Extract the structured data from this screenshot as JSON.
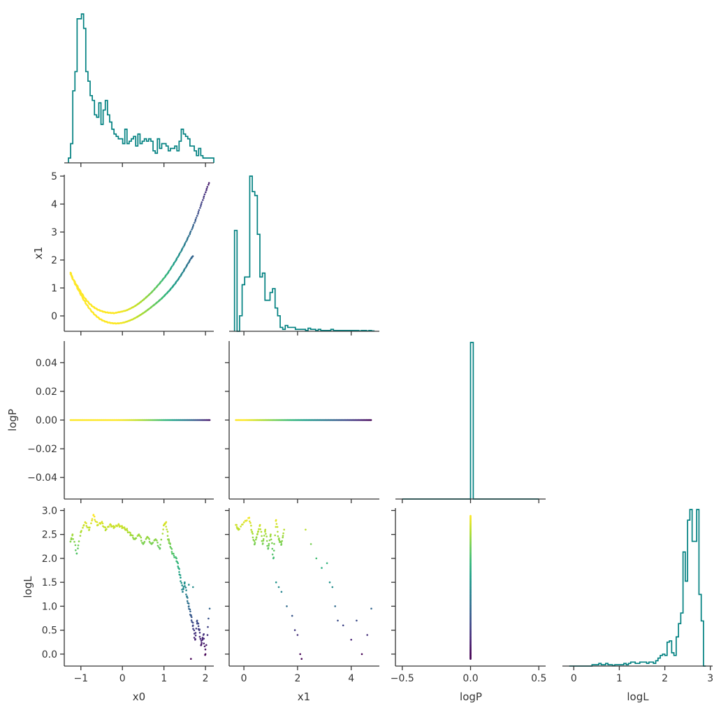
{
  "chart_data": {
    "type": "corner",
    "title": "",
    "variables": [
      "x0",
      "x1",
      "logP",
      "logL"
    ],
    "hist_color": "#008080",
    "colormap": "viridis",
    "color_by": "logL",
    "ranges": {
      "x0": [
        -1.4,
        2.2
      ],
      "x1": [
        -0.55,
        5.05
      ],
      "logP": [
        -0.055,
        0.055
      ],
      "logP_diag": [
        -0.55,
        0.55
      ],
      "logL": [
        -0.25,
        3.05
      ],
      "logL_diag": [
        -0.25,
        3.05
      ]
    },
    "ticks": {
      "x0": [
        -1,
        0,
        1,
        2
      ],
      "x1_y": [
        0,
        1,
        2,
        3,
        4,
        5
      ],
      "x1_x": [
        0,
        2,
        4
      ],
      "logP_y": [
        -0.04,
        -0.02,
        0.0,
        0.02,
        0.04
      ],
      "logP_x": [
        -0.5,
        0.0,
        0.5
      ],
      "logL_y": [
        0.0,
        0.5,
        1.0,
        1.5,
        2.0,
        2.5,
        3.0
      ],
      "logL_x": [
        0,
        1,
        2,
        3
      ]
    },
    "tick_labels": {
      "x0": [
        "−1",
        "0",
        "1",
        "2"
      ],
      "x1_y": [
        "0",
        "1",
        "2",
        "3",
        "4",
        "5"
      ],
      "x1_x": [
        "0",
        "2",
        "4"
      ],
      "logP_y": [
        "−0.04",
        "−0.02",
        "0.00",
        "0.02",
        "0.04"
      ],
      "logP_x": [
        "−0.5",
        "0.0",
        "0.5"
      ],
      "logL_y": [
        "0.0",
        "0.5",
        "1.0",
        "1.5",
        "2.0",
        "2.5",
        "3.0"
      ],
      "logL_x": [
        "0",
        "1",
        "2",
        "3"
      ]
    },
    "axis_labels": {
      "row_x1": "x1",
      "row_logP": "logP",
      "row_logL": "logL",
      "col_x0": "x0",
      "col_x1": "x1",
      "col_logP": "logP",
      "col_logL": "logL"
    },
    "histograms": {
      "x0": {
        "edges": [
          -1.3,
          2.2
        ],
        "counts": [
          2,
          8,
          30,
          38,
          60,
          60,
          62,
          56,
          38,
          34,
          28,
          26,
          20,
          19,
          25,
          16,
          22,
          26,
          20,
          17,
          14,
          12,
          11,
          10,
          10,
          8,
          14,
          8,
          9,
          10,
          11,
          7,
          12,
          8,
          9,
          10,
          9,
          10,
          9,
          5,
          4,
          10,
          6,
          8,
          8,
          7,
          5,
          6,
          6,
          7,
          5,
          9,
          14,
          12,
          11,
          10,
          7,
          7,
          5,
          3,
          6,
          3,
          2,
          2,
          2,
          2,
          2
        ]
      },
      "x1": {
        "edges": [
          -0.35,
          4.85
        ],
        "counts": [
          26,
          0,
          4,
          12,
          14,
          14,
          40,
          36,
          35,
          25,
          14,
          15,
          8,
          8,
          10,
          11,
          6,
          4,
          1,
          0.5,
          1.5,
          1,
          1,
          1,
          0.5,
          0.5,
          0.5,
          0.5,
          0.2,
          0.8,
          0.5,
          0.5,
          0.2,
          0.5,
          0.2,
          0.2,
          0.2,
          0.2,
          0.5,
          0.2,
          0.2,
          0.2,
          0.2,
          0.2,
          0.2,
          0.2,
          0.2,
          0.2,
          0.2,
          0.1,
          0.2,
          0.2,
          0.1,
          0.2,
          0.1
        ]
      },
      "logP": {
        "edges": [
          -0.5,
          0.5
        ],
        "counts": [
          0,
          0,
          0,
          0,
          0,
          0,
          0,
          0,
          0,
          0,
          0,
          0,
          0,
          0,
          0,
          0,
          0,
          0,
          0,
          0,
          0,
          0,
          0,
          0,
          0,
          1,
          0,
          0,
          0,
          0,
          0,
          0,
          0,
          0,
          0,
          0,
          0,
          0,
          0,
          0,
          0,
          0,
          0,
          0,
          0,
          0,
          0,
          0,
          0,
          0
        ]
      },
      "logL": {
        "edges": [
          -0.1,
          2.9
        ],
        "counts": [
          0,
          0,
          0,
          0,
          0,
          0,
          0,
          0,
          0,
          0,
          0.5,
          0.5,
          0.5,
          1,
          0.5,
          0.5,
          1,
          0.5,
          0.5,
          0.2,
          0.5,
          0.5,
          0.5,
          0.5,
          1,
          0.5,
          1,
          1.5,
          1.5,
          1,
          1,
          1.5,
          1.5,
          1.5,
          1,
          1.5,
          1.5,
          1,
          2,
          3,
          4,
          4.5,
          4,
          9,
          9.5,
          5,
          4,
          11,
          16,
          20,
          43,
          32,
          55,
          59,
          47,
          47,
          59,
          27,
          17,
          0
        ]
      }
    },
    "scatter": {
      "note_units": "x0, x1, logL in data units",
      "branchA": [
        [
          -1.25,
          1.55
        ],
        [
          -1.2,
          1.35
        ],
        [
          -1.1,
          1.1
        ],
        [
          -1.0,
          0.85
        ],
        [
          -0.9,
          0.62
        ],
        [
          -0.8,
          0.45
        ],
        [
          -0.7,
          0.32
        ],
        [
          -0.6,
          0.23
        ],
        [
          -0.5,
          0.17
        ],
        [
          -0.4,
          0.13
        ],
        [
          -0.3,
          0.11
        ],
        [
          -0.2,
          0.1
        ],
        [
          -0.1,
          0.13
        ],
        [
          0.0,
          0.16
        ],
        [
          0.1,
          0.2
        ],
        [
          0.2,
          0.27
        ],
        [
          0.3,
          0.35
        ],
        [
          0.4,
          0.45
        ],
        [
          0.5,
          0.57
        ],
        [
          0.6,
          0.7
        ],
        [
          0.7,
          0.84
        ],
        [
          0.8,
          1.0
        ],
        [
          0.9,
          1.17
        ],
        [
          1.0,
          1.35
        ],
        [
          1.1,
          1.55
        ],
        [
          1.2,
          1.78
        ],
        [
          1.3,
          2.02
        ],
        [
          1.4,
          2.28
        ],
        [
          1.5,
          2.56
        ],
        [
          1.6,
          2.86
        ],
        [
          1.7,
          3.2
        ],
        [
          1.8,
          3.58
        ],
        [
          1.9,
          4.0
        ],
        [
          2.0,
          4.42
        ],
        [
          2.1,
          4.82
        ]
      ],
      "branchB": [
        [
          -1.25,
          1.5
        ],
        [
          -1.15,
          1.18
        ],
        [
          -1.05,
          0.9
        ],
        [
          -0.95,
          0.62
        ],
        [
          -0.85,
          0.38
        ],
        [
          -0.75,
          0.18
        ],
        [
          -0.65,
          0.02
        ],
        [
          -0.55,
          -0.1
        ],
        [
          -0.45,
          -0.18
        ],
        [
          -0.35,
          -0.23
        ],
        [
          -0.25,
          -0.26
        ],
        [
          -0.15,
          -0.27
        ],
        [
          -0.05,
          -0.26
        ],
        [
          0.05,
          -0.23
        ],
        [
          0.15,
          -0.18
        ],
        [
          0.25,
          -0.12
        ],
        [
          0.35,
          -0.04
        ],
        [
          0.45,
          0.05
        ],
        [
          0.55,
          0.15
        ],
        [
          0.65,
          0.26
        ],
        [
          0.75,
          0.38
        ],
        [
          0.85,
          0.5
        ],
        [
          0.95,
          0.63
        ],
        [
          1.05,
          0.78
        ],
        [
          1.15,
          0.94
        ],
        [
          1.25,
          1.12
        ],
        [
          1.35,
          1.32
        ],
        [
          1.45,
          1.55
        ],
        [
          1.55,
          1.8
        ],
        [
          1.65,
          2.05
        ],
        [
          1.7,
          2.15
        ]
      ],
      "x0_logL": [
        [
          -1.25,
          2.35
        ],
        [
          -1.2,
          2.5
        ],
        [
          -1.1,
          2.1
        ],
        [
          -1.0,
          2.55
        ],
        [
          -0.9,
          2.75
        ],
        [
          -0.8,
          2.6
        ],
        [
          -0.7,
          2.9
        ],
        [
          -0.6,
          2.7
        ],
        [
          -0.5,
          2.75
        ],
        [
          -0.4,
          2.6
        ],
        [
          -0.3,
          2.7
        ],
        [
          -0.2,
          2.65
        ],
        [
          -0.1,
          2.7
        ],
        [
          0.0,
          2.65
        ],
        [
          0.1,
          2.6
        ],
        [
          0.2,
          2.5
        ],
        [
          0.3,
          2.4
        ],
        [
          0.4,
          2.5
        ],
        [
          0.5,
          2.3
        ],
        [
          0.6,
          2.45
        ],
        [
          0.7,
          2.3
        ],
        [
          0.8,
          2.4
        ],
        [
          0.9,
          2.2
        ],
        [
          1.0,
          2.7
        ],
        [
          1.05,
          2.75
        ],
        [
          1.1,
          2.4
        ],
        [
          1.15,
          2.3
        ],
        [
          1.2,
          2.1
        ],
        [
          1.3,
          2.0
        ],
        [
          1.35,
          1.8
        ],
        [
          1.4,
          1.6
        ],
        [
          1.45,
          1.3
        ],
        [
          1.5,
          1.5
        ],
        [
          1.55,
          1.2
        ],
        [
          1.6,
          1.0
        ],
        [
          1.65,
          0.8
        ],
        [
          1.7,
          0.6
        ],
        [
          1.75,
          0.3
        ],
        [
          1.8,
          0.7
        ],
        [
          1.85,
          0.5
        ],
        [
          1.9,
          0.2
        ],
        [
          1.95,
          0.4
        ],
        [
          2.0,
          0.0
        ],
        [
          2.1,
          0.95
        ],
        [
          1.65,
          -0.1
        ],
        [
          1.7,
          1.4
        ],
        [
          1.6,
          1.45
        ]
      ],
      "x1_logL": [
        [
          -0.3,
          2.7
        ],
        [
          -0.2,
          2.6
        ],
        [
          0.0,
          2.75
        ],
        [
          0.2,
          2.85
        ],
        [
          0.3,
          2.55
        ],
        [
          0.4,
          2.3
        ],
        [
          0.5,
          2.5
        ],
        [
          0.6,
          2.7
        ],
        [
          0.7,
          2.3
        ],
        [
          0.8,
          2.6
        ],
        [
          0.9,
          2.2
        ],
        [
          1.0,
          2.5
        ],
        [
          1.1,
          2.0
        ],
        [
          1.2,
          2.8
        ],
        [
          1.3,
          2.4
        ],
        [
          1.4,
          2.3
        ],
        [
          1.5,
          2.6
        ],
        [
          1.2,
          1.5
        ],
        [
          1.3,
          1.4
        ],
        [
          1.4,
          1.3
        ],
        [
          1.6,
          1.0
        ],
        [
          1.8,
          0.8
        ],
        [
          1.9,
          0.5
        ],
        [
          2.0,
          0.4
        ],
        [
          2.1,
          0.0
        ],
        [
          2.15,
          -0.1
        ],
        [
          2.3,
          2.6
        ],
        [
          2.5,
          2.3
        ],
        [
          2.7,
          2.0
        ],
        [
          2.9,
          1.8
        ],
        [
          3.1,
          1.9
        ],
        [
          3.2,
          1.5
        ],
        [
          3.3,
          1.4
        ],
        [
          3.4,
          1.0
        ],
        [
          3.5,
          0.7
        ],
        [
          3.7,
          0.6
        ],
        [
          4.0,
          0.3
        ],
        [
          4.2,
          0.7
        ],
        [
          4.4,
          0.0
        ],
        [
          4.6,
          0.4
        ],
        [
          4.75,
          0.95
        ]
      ]
    }
  }
}
